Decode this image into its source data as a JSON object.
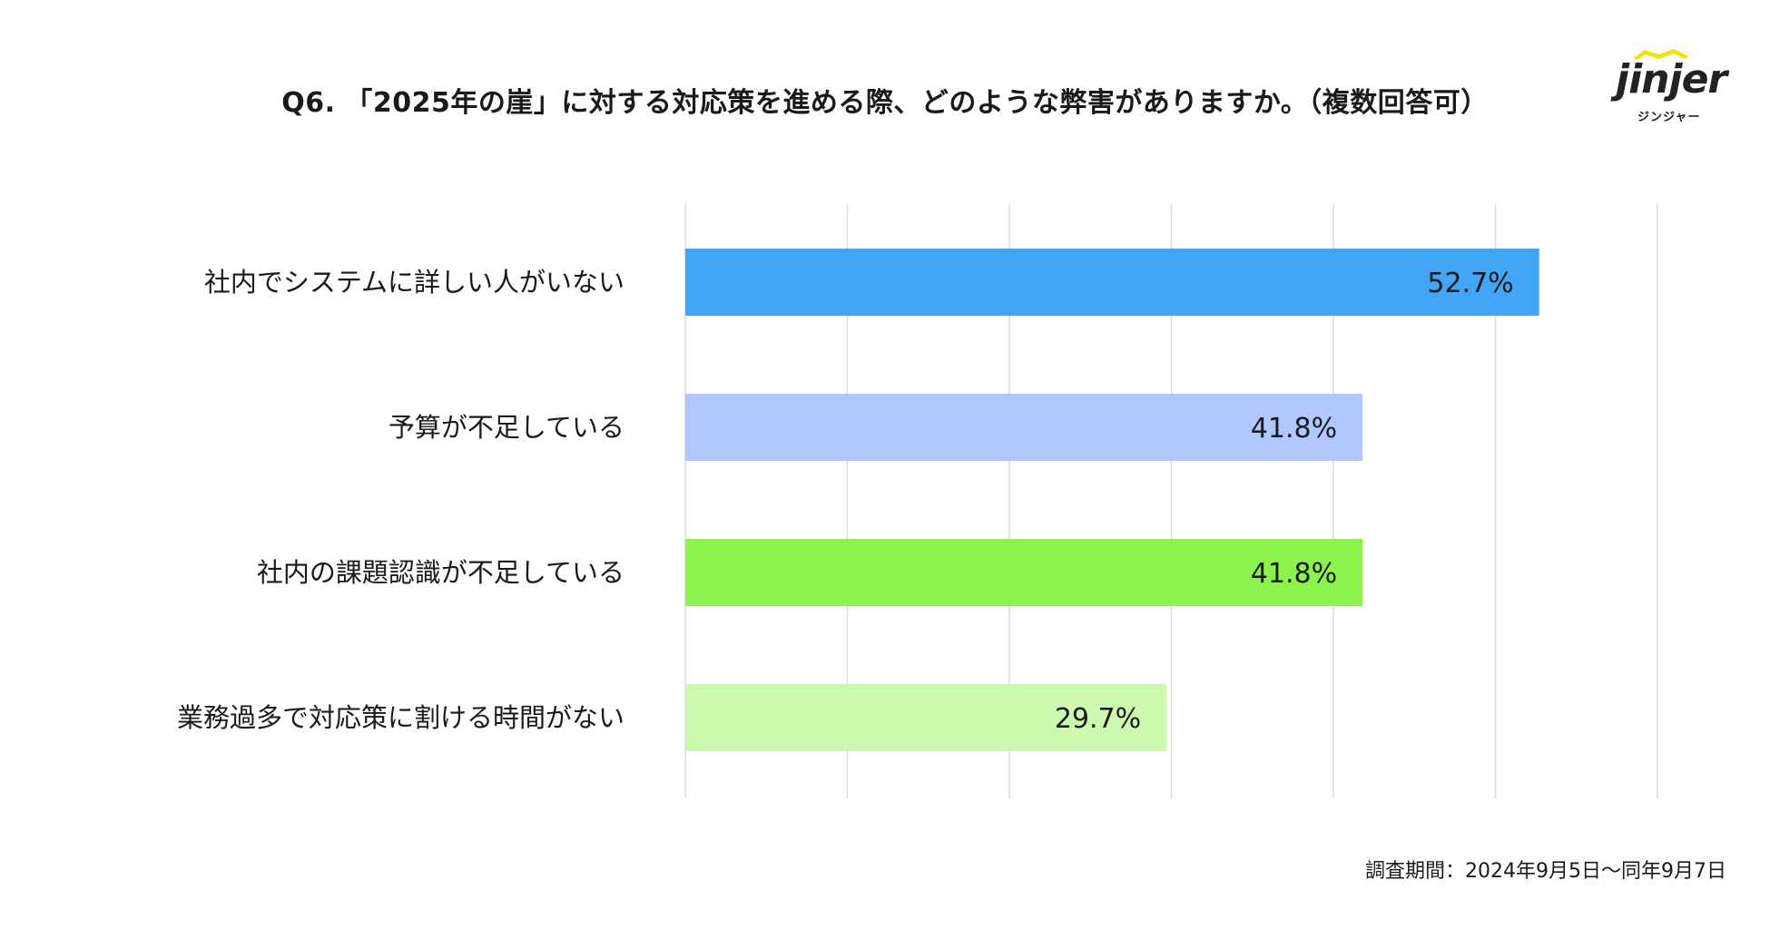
{
  "brand": {
    "logo_text": "jinjer",
    "logo_subtext": "ジンジャー",
    "hat_color": "#f5e100"
  },
  "footnote": "調査期間：2024年9月5日〜同年9月7日",
  "chart_data": {
    "type": "bar",
    "orientation": "horizontal",
    "title": "Q6. 「2025年の崖」に対する対応策を進める際、どのような弊害がありますか。（複数回答可）",
    "categories": [
      "社内でシステムに詳しい人がいない",
      "予算が不足している",
      "社内の課題認識が不足している",
      "業務過多で対応策に割ける時間がない"
    ],
    "values": [
      52.7,
      41.8,
      41.8,
      29.7
    ],
    "value_labels": [
      "52.7%",
      "41.8%",
      "41.8%",
      "29.7%"
    ],
    "colors": [
      "#42a5f5",
      "#b0c8ff",
      "#8ef24e",
      "#cdf9ae"
    ],
    "xlim": [
      0,
      60
    ],
    "grid_step": 10,
    "grid": true,
    "xlabel": "",
    "ylabel": ""
  }
}
